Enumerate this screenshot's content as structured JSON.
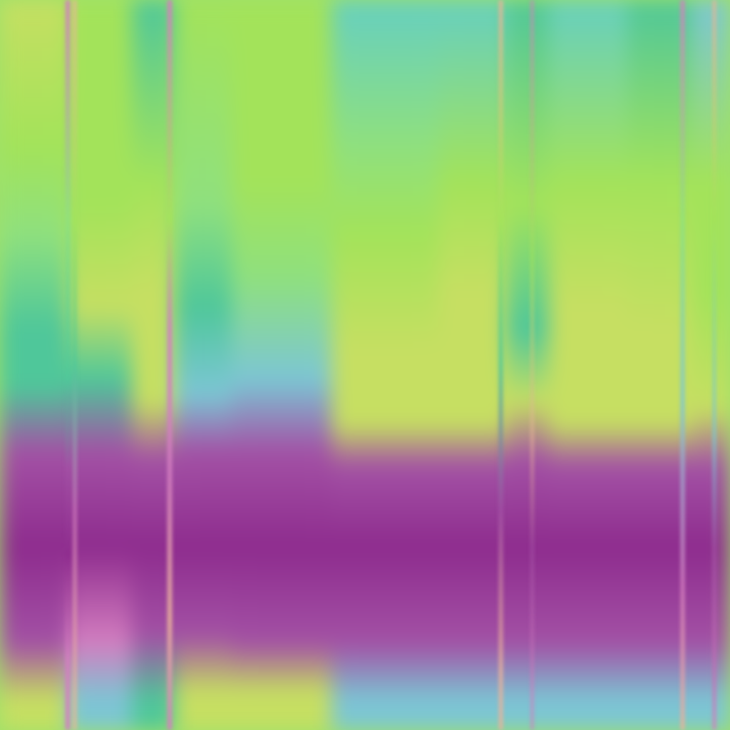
{
  "palette": {
    "lime": "#a3e35a",
    "light_green": "#8fe07e",
    "yellow_green": "#c6df62",
    "teal": "#4fc79a",
    "aqua": "#66cfc0",
    "sky": "#7cc6d4",
    "magenta": "#8e2c8e",
    "violet": "#a351a5",
    "pink": "#d37ec0",
    "peach": "#e9b39a"
  }
}
